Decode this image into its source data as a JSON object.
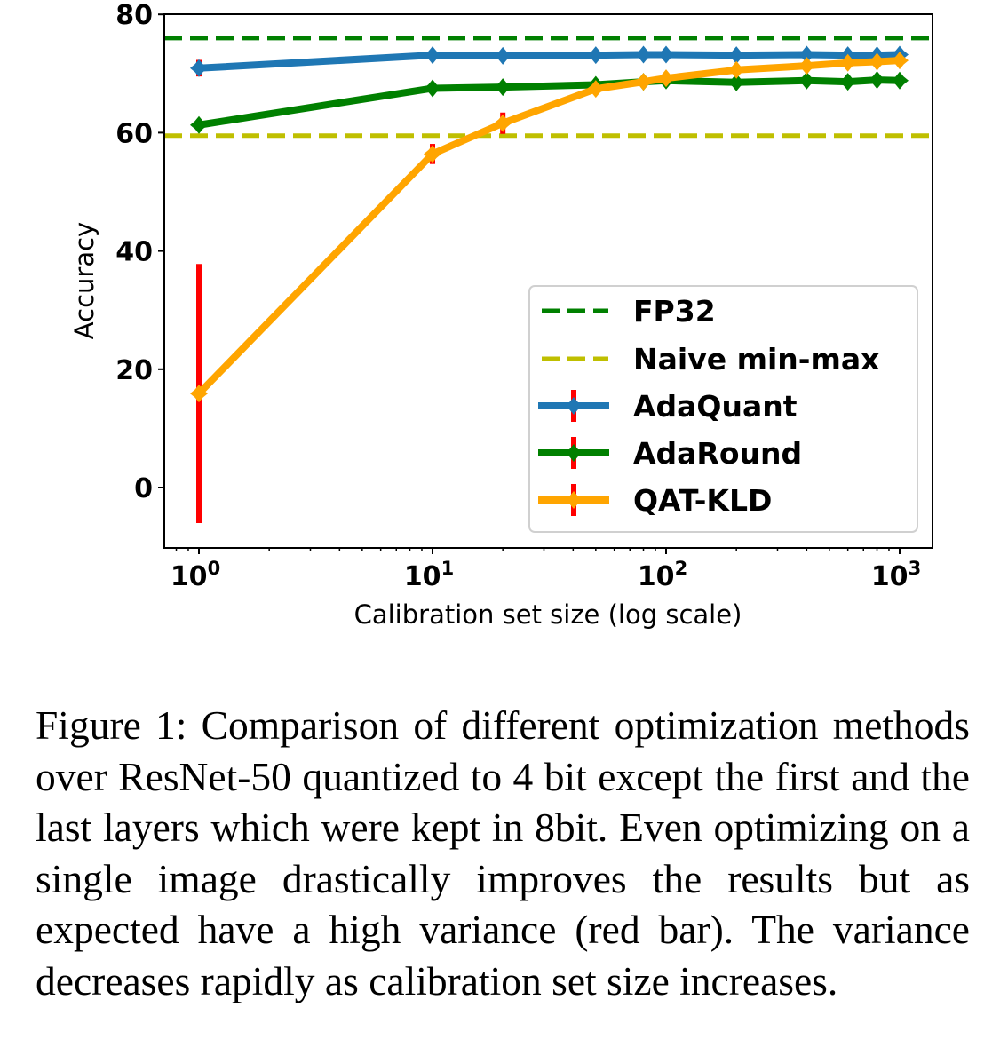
{
  "chart_data": {
    "type": "line",
    "title": "",
    "xlabel": "Calibration set size (log scale)",
    "ylabel": "Accuracy",
    "xscale": "log",
    "xlim": [
      0.8,
      1300
    ],
    "ylim": [
      -10.5,
      80
    ],
    "x_ticks": [
      {
        "value": 1,
        "base": "10",
        "exp": "0"
      },
      {
        "value": 10,
        "base": "10",
        "exp": "1"
      },
      {
        "value": 100,
        "base": "10",
        "exp": "2"
      },
      {
        "value": 1000,
        "base": "10",
        "exp": "3"
      }
    ],
    "y_ticks": [
      0,
      20,
      40,
      60,
      80
    ],
    "grid": false,
    "legend_position": "center-right",
    "x": [
      1,
      10,
      20,
      50,
      80,
      100,
      200,
      400,
      600,
      800,
      1000
    ],
    "reference_lines": [
      {
        "name": "FP32",
        "value": 76.0,
        "color": "#008000",
        "style": "dashed"
      },
      {
        "name": "Naive min-max",
        "value": 59.5,
        "color": "#bfbf00",
        "style": "dashed"
      }
    ],
    "series": [
      {
        "name": "AdaQuant",
        "color": "#1f77b4",
        "values": [
          70.9,
          73.1,
          73.0,
          73.1,
          73.2,
          73.2,
          73.1,
          73.2,
          73.1,
          73.1,
          73.2
        ],
        "error": [
          1.4,
          0.2,
          0.2,
          0.2,
          0.2,
          0.2,
          0.2,
          0.2,
          0.2,
          0.2,
          0.2
        ]
      },
      {
        "name": "AdaRound",
        "color": "#008000",
        "values": [
          61.3,
          67.5,
          67.7,
          68.1,
          68.6,
          68.8,
          68.5,
          68.8,
          68.6,
          68.9,
          68.8
        ],
        "error": [
          0.8,
          0.3,
          0.3,
          0.3,
          0.3,
          0.3,
          0.3,
          0.3,
          0.3,
          0.3,
          0.3
        ]
      },
      {
        "name": "QAT-KLD",
        "color": "#ffa500",
        "values": [
          15.9,
          56.4,
          61.6,
          67.4,
          68.6,
          69.2,
          70.6,
          71.3,
          71.8,
          72.0,
          72.2
        ],
        "error": [
          21.9,
          1.7,
          1.8,
          0.3,
          0.3,
          0.3,
          0.3,
          0.3,
          0.3,
          0.3,
          0.3
        ]
      }
    ],
    "error_bar_color": "#ff0000",
    "legend": [
      "FP32",
      "Naive min-max",
      "AdaQuant",
      "AdaRound",
      "QAT-KLD"
    ]
  },
  "caption": "Figure 1: Comparison of different optimization methods over ResNet-50 quantized to 4 bit except the first and the last layers which were kept in 8bit. Even optimizing on a single image drastically improves the results but as expected have a high variance (red bar). The variance decreases rapidly as calibration set size increases."
}
